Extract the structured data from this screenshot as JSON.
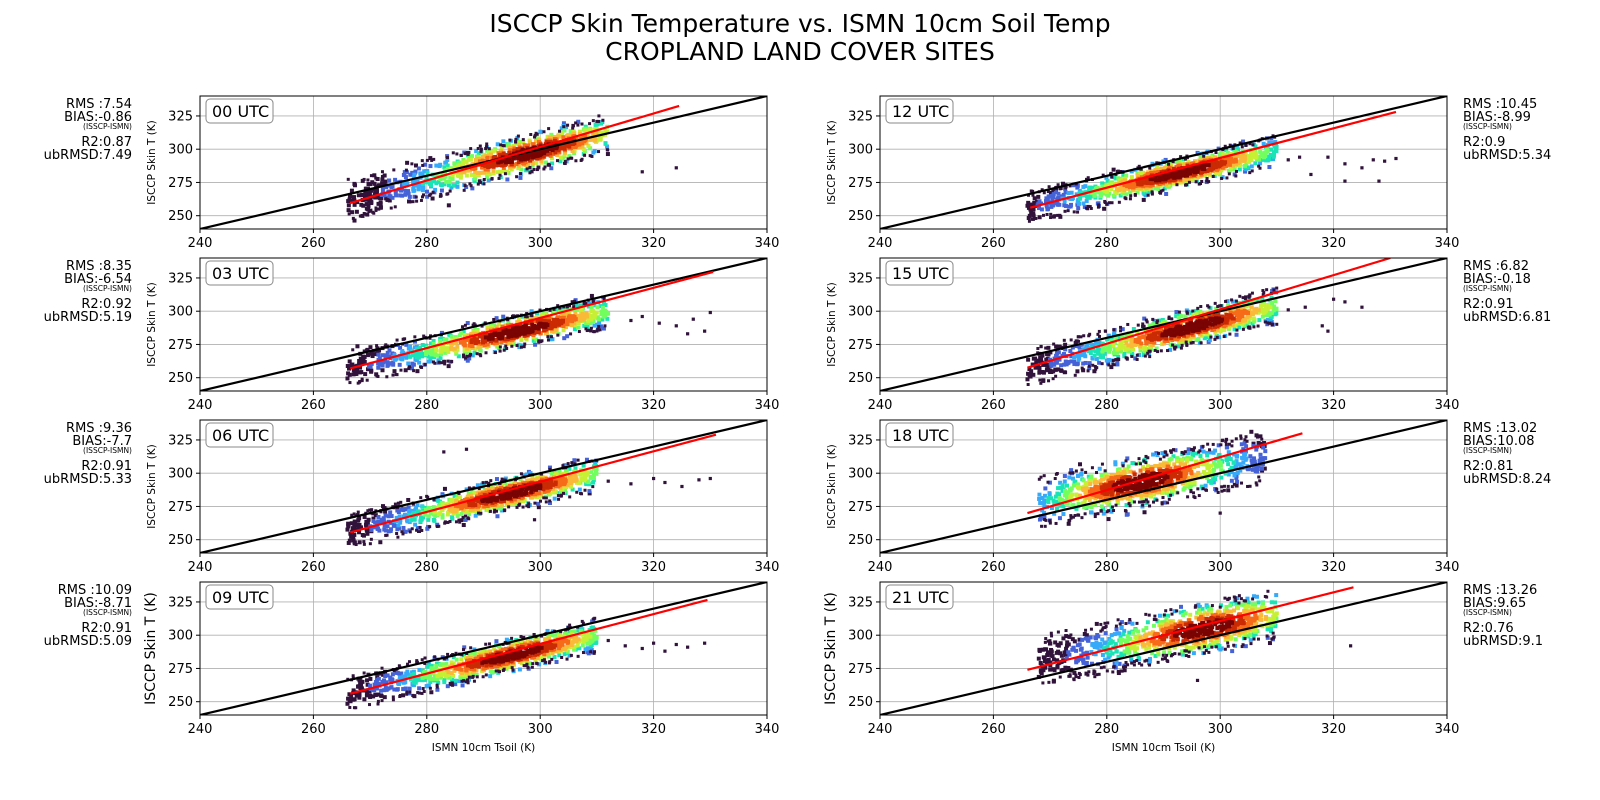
{
  "title": {
    "line1": "ISCCP Skin Temperature vs. ISMN 10cm Soil Temp",
    "line2": "CROPLAND LAND COVER SITES"
  },
  "colors": {
    "one_to_one": "#000000",
    "fit": "#ff0000",
    "density_colormap": [
      "#30123b",
      "#4662d7",
      "#36aaf9",
      "#1ae4b6",
      "#72fe5e",
      "#c7ef34",
      "#faba39",
      "#f66b19",
      "#ca2a04",
      "#7a0403"
    ],
    "grid": "#b0b0b0"
  },
  "chart_data": [
    {
      "type": "scatter",
      "panel_label": "00 UTC",
      "xlabel": "",
      "ylabel": "ISCCP Skin T (K)",
      "xlim": [
        240,
        340
      ],
      "ylim": [
        240,
        340
      ],
      "xticks": [
        240,
        260,
        280,
        300,
        320,
        340
      ],
      "yticks": [
        250,
        275,
        300,
        325
      ],
      "grid": true,
      "stats_side": "left",
      "stats": {
        "rms": "RMS :7.54",
        "bias": "BIAS:-0.86",
        "bias_note": "(ISSCP-ISMN)",
        "r2": "R2:0.87",
        "ubrmsd": "ubRMSD:7.49"
      },
      "fit_line": {
        "x": [
          266.5,
          324.5
        ],
        "y": [
          259.5,
          332.5
        ]
      },
      "one_to_one": {
        "x": [
          240,
          340
        ],
        "y": [
          240,
          340
        ]
      },
      "density_cloud": {
        "x_range": [
          266,
          312
        ],
        "center_line": {
          "x": [
            266,
            312
          ],
          "y": [
            262,
            312
          ]
        },
        "spread": 14,
        "peak_at_x": 298
      },
      "outliers": [
        {
          "x": 318,
          "y": 283
        },
        {
          "x": 324,
          "y": 286
        }
      ]
    },
    {
      "type": "scatter",
      "panel_label": "03 UTC",
      "xlabel": "",
      "ylabel": "ISCCP Skin T (K)",
      "xlim": [
        240,
        340
      ],
      "ylim": [
        240,
        340
      ],
      "xticks": [
        240,
        260,
        280,
        300,
        320,
        340
      ],
      "yticks": [
        250,
        275,
        300,
        325
      ],
      "grid": true,
      "stats_side": "left",
      "stats": {
        "rms": "RMS :8.35",
        "bias": "BIAS:-6.54",
        "bias_note": "(ISSCP-ISMN)",
        "r2": "R2:0.92",
        "ubrmsd": "ubRMSD:5.19"
      },
      "fit_line": {
        "x": [
          266.5,
          330.5
        ],
        "y": [
          257,
          329.5
        ]
      },
      "one_to_one": {
        "x": [
          240,
          340
        ],
        "y": [
          240,
          340
        ]
      },
      "density_cloud": {
        "x_range": [
          266,
          312
        ],
        "center_line": {
          "x": [
            266,
            312
          ],
          "y": [
            257,
            300
          ]
        },
        "spread": 12,
        "peak_at_x": 296
      },
      "outliers": [
        {
          "x": 318,
          "y": 296
        },
        {
          "x": 321,
          "y": 291
        },
        {
          "x": 324,
          "y": 289
        },
        {
          "x": 327,
          "y": 294
        },
        {
          "x": 329,
          "y": 285
        },
        {
          "x": 330,
          "y": 299
        },
        {
          "x": 326,
          "y": 283
        },
        {
          "x": 316,
          "y": 293
        }
      ]
    },
    {
      "type": "scatter",
      "panel_label": "06 UTC",
      "xlabel": "",
      "ylabel": "ISCCP Skin T (K)",
      "xlim": [
        240,
        340
      ],
      "ylim": [
        240,
        340
      ],
      "xticks": [
        240,
        260,
        280,
        300,
        320,
        340
      ],
      "yticks": [
        250,
        275,
        300,
        325
      ],
      "grid": true,
      "stats_side": "left",
      "stats": {
        "rms": "RMS :9.36",
        "bias": "BIAS:-7.7",
        "bias_note": "(ISSCP-ISMN)",
        "r2": "R2:0.91",
        "ubrmsd": "ubRMSD:5.33"
      },
      "fit_line": {
        "x": [
          266.5,
          331
        ],
        "y": [
          255.5,
          329
        ]
      },
      "one_to_one": {
        "x": [
          240,
          340
        ],
        "y": [
          240,
          340
        ]
      },
      "density_cloud": {
        "x_range": [
          266,
          310
        ],
        "center_line": {
          "x": [
            266,
            310
          ],
          "y": [
            256,
            300
          ]
        },
        "spread": 12,
        "peak_at_x": 295
      },
      "outliers": [
        {
          "x": 283,
          "y": 316
        },
        {
          "x": 287,
          "y": 318
        },
        {
          "x": 312,
          "y": 294
        },
        {
          "x": 316,
          "y": 292
        },
        {
          "x": 320,
          "y": 296
        },
        {
          "x": 322,
          "y": 293
        },
        {
          "x": 325,
          "y": 290
        },
        {
          "x": 328,
          "y": 295
        },
        {
          "x": 330,
          "y": 296
        },
        {
          "x": 299,
          "y": 265
        }
      ]
    },
    {
      "type": "scatter",
      "panel_label": "09 UTC",
      "xlabel": "ISMN 10cm Tsoil (K)",
      "ylabel": "ISCCP Skin T (K)",
      "xlim": [
        240,
        340
      ],
      "ylim": [
        240,
        340
      ],
      "xticks": [
        240,
        260,
        280,
        300,
        320,
        340
      ],
      "yticks": [
        250,
        275,
        300,
        325
      ],
      "grid": true,
      "stats_side": "left",
      "stats": {
        "rms": "RMS :10.09",
        "bias": "BIAS:-8.71",
        "bias_note": "(ISSCP-ISMN)",
        "r2": "R2:0.91",
        "ubrmsd": "ubRMSD:5.09"
      },
      "fit_line": {
        "x": [
          266.5,
          329.5
        ],
        "y": [
          256,
          326.5
        ]
      },
      "one_to_one": {
        "x": [
          240,
          340
        ],
        "y": [
          240,
          340
        ]
      },
      "density_cloud": {
        "x_range": [
          266,
          310
        ],
        "center_line": {
          "x": [
            266,
            310
          ],
          "y": [
            256,
            300
          ]
        },
        "spread": 12,
        "peak_at_x": 295
      },
      "outliers": [
        {
          "x": 312,
          "y": 296
        },
        {
          "x": 315,
          "y": 292
        },
        {
          "x": 318,
          "y": 290
        },
        {
          "x": 320,
          "y": 294
        },
        {
          "x": 322,
          "y": 288
        },
        {
          "x": 324,
          "y": 293
        },
        {
          "x": 326,
          "y": 291
        },
        {
          "x": 329,
          "y": 294
        }
      ]
    },
    {
      "type": "scatter",
      "panel_label": "12 UTC",
      "xlabel": "",
      "ylabel": "ISCCP Skin T (K)",
      "xlim": [
        240,
        340
      ],
      "ylim": [
        240,
        340
      ],
      "xticks": [
        240,
        260,
        280,
        300,
        320,
        340
      ],
      "yticks": [
        250,
        275,
        300,
        325
      ],
      "grid": true,
      "stats_side": "right",
      "stats": {
        "rms": "RMS :10.45",
        "bias": "BIAS:-8.99",
        "bias_note": "(ISSCP-ISMN)",
        "r2": "R2:0.9",
        "ubrmsd": "ubRMSD:5.34"
      },
      "fit_line": {
        "x": [
          266.5,
          331
        ],
        "y": [
          256,
          328
        ]
      },
      "one_to_one": {
        "x": [
          240,
          340
        ],
        "y": [
          240,
          340
        ]
      },
      "density_cloud": {
        "x_range": [
          266,
          310
        ],
        "center_line": {
          "x": [
            266,
            310
          ],
          "y": [
            256,
            299
          ]
        },
        "spread": 11,
        "peak_at_x": 293
      },
      "outliers": [
        {
          "x": 312,
          "y": 292
        },
        {
          "x": 314,
          "y": 294
        },
        {
          "x": 316,
          "y": 281
        },
        {
          "x": 319,
          "y": 294
        },
        {
          "x": 322,
          "y": 289
        },
        {
          "x": 325,
          "y": 286
        },
        {
          "x": 327,
          "y": 292
        },
        {
          "x": 329,
          "y": 291
        },
        {
          "x": 331,
          "y": 293
        },
        {
          "x": 322,
          "y": 276
        },
        {
          "x": 328,
          "y": 276
        }
      ]
    },
    {
      "type": "scatter",
      "panel_label": "15 UTC",
      "xlabel": "",
      "ylabel": "ISCCP Skin T (K)",
      "xlim": [
        240,
        340
      ],
      "ylim": [
        240,
        340
      ],
      "xticks": [
        240,
        260,
        280,
        300,
        320,
        340
      ],
      "yticks": [
        250,
        275,
        300,
        325
      ],
      "grid": true,
      "stats_side": "right",
      "stats": {
        "rms": "RMS :6.82",
        "bias": "BIAS:-0.18",
        "bias_note": "(ISSCP-ISMN)",
        "r2": "R2:0.91",
        "ubrmsd": "ubRMSD:6.81"
      },
      "fit_line": {
        "x": [
          266,
          330
        ],
        "y": [
          257.5,
          340
        ]
      },
      "one_to_one": {
        "x": [
          240,
          340
        ],
        "y": [
          240,
          340
        ]
      },
      "density_cloud": {
        "x_range": [
          266,
          310
        ],
        "center_line": {
          "x": [
            266,
            310
          ],
          "y": [
            257,
            304
          ]
        },
        "spread": 13,
        "peak_at_x": 295
      },
      "outliers": [
        {
          "x": 312,
          "y": 301
        },
        {
          "x": 315,
          "y": 303
        },
        {
          "x": 318,
          "y": 289
        },
        {
          "x": 320,
          "y": 309
        },
        {
          "x": 322,
          "y": 307
        },
        {
          "x": 325,
          "y": 303
        },
        {
          "x": 319,
          "y": 285
        }
      ]
    },
    {
      "type": "scatter",
      "panel_label": "18 UTC",
      "xlabel": "",
      "ylabel": "ISCCP Skin T (K)",
      "xlim": [
        240,
        340
      ],
      "ylim": [
        240,
        340
      ],
      "xticks": [
        240,
        260,
        280,
        300,
        320,
        340
      ],
      "yticks": [
        250,
        275,
        300,
        325
      ],
      "grid": true,
      "stats_side": "right",
      "stats": {
        "rms": "RMS :13.02",
        "bias": "BIAS:10.08",
        "bias_note": "(ISSCP-ISMN)",
        "r2": "R2:0.81",
        "ubrmsd": "ubRMSD:8.24"
      },
      "fit_line": {
        "x": [
          266,
          314.5
        ],
        "y": [
          270,
          330
        ]
      },
      "one_to_one": {
        "x": [
          240,
          340
        ],
        "y": [
          240,
          340
        ]
      },
      "density_cloud": {
        "x_range": [
          268,
          308
        ],
        "center_line": {
          "x": [
            268,
            308
          ],
          "y": [
            278,
            312
          ]
        },
        "spread": 18,
        "peak_at_x": 286
      },
      "outliers": [
        {
          "x": 300,
          "y": 270
        }
      ]
    },
    {
      "type": "scatter",
      "panel_label": "21 UTC",
      "xlabel": "ISMN 10cm Tsoil (K)",
      "ylabel": "ISCCP Skin T (K)",
      "xlim": [
        240,
        340
      ],
      "ylim": [
        240,
        340
      ],
      "xticks": [
        240,
        260,
        280,
        300,
        320,
        340
      ],
      "yticks": [
        250,
        275,
        300,
        325
      ],
      "grid": true,
      "stats_side": "right",
      "stats": {
        "rms": "RMS :13.26",
        "bias": "BIAS:9.65",
        "bias_note": "(ISSCP-ISMN)",
        "r2": "R2:0.76",
        "ubrmsd": "ubRMSD:9.1"
      },
      "fit_line": {
        "x": [
          266,
          323.5
        ],
        "y": [
          274,
          336
        ]
      },
      "one_to_one": {
        "x": [
          240,
          340
        ],
        "y": [
          240,
          340
        ]
      },
      "density_cloud": {
        "x_range": [
          268,
          310
        ],
        "center_line": {
          "x": [
            268,
            310
          ],
          "y": [
            280,
            316
          ]
        },
        "spread": 18,
        "peak_at_x": 297
      },
      "outliers": [
        {
          "x": 323,
          "y": 292
        },
        {
          "x": 296,
          "y": 266
        }
      ]
    }
  ]
}
